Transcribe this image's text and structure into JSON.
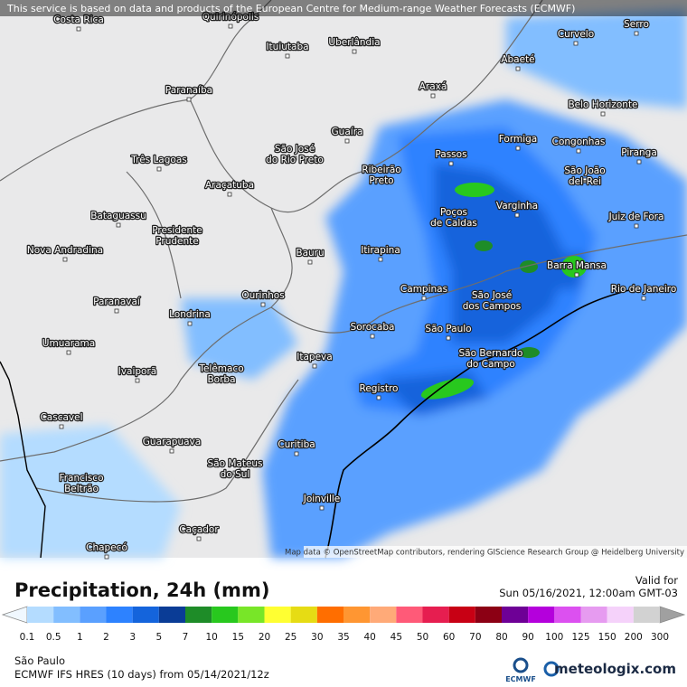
{
  "header": {
    "notice": "This service is based on data and products of the European Centre for Medium-range Weather Forecasts (ECMWF)"
  },
  "map": {
    "attribution": "Map data © OpenStreetMap contributors, rendering GIScience Research Group @ Heidelberg University",
    "cities": [
      {
        "lines": [
          "Costa Rica"
        ]
      },
      {
        "lines": [
          "Quirinópolis"
        ]
      },
      {
        "lines": [
          "Ituiutaba"
        ]
      },
      {
        "lines": [
          "Uberlândia"
        ]
      },
      {
        "lines": [
          "Paranaíba"
        ]
      },
      {
        "lines": [
          "Araxá"
        ]
      },
      {
        "lines": [
          "Abaeté"
        ]
      },
      {
        "lines": [
          "Curvelo"
        ]
      },
      {
        "lines": [
          "Serro"
        ]
      },
      {
        "lines": [
          "Belo Horizonte"
        ]
      },
      {
        "lines": [
          "Guaíra"
        ]
      },
      {
        "lines": [
          "Passos"
        ]
      },
      {
        "lines": [
          "Formiga"
        ]
      },
      {
        "lines": [
          "Congonhas"
        ]
      },
      {
        "lines": [
          "Piranga"
        ]
      },
      {
        "lines": [
          "São José",
          "do Rio Preto"
        ]
      },
      {
        "lines": [
          "Três Lagoas"
        ]
      },
      {
        "lines": [
          "Ribeirão",
          "Preto"
        ]
      },
      {
        "lines": [
          "São João",
          "del-Rei"
        ]
      },
      {
        "lines": [
          "Araçatuba"
        ]
      },
      {
        "lines": [
          "Poços",
          "de Caldas"
        ]
      },
      {
        "lines": [
          "Varginha"
        ]
      },
      {
        "lines": [
          "Juiz de Fora"
        ]
      },
      {
        "lines": [
          "Bataguassu"
        ]
      },
      {
        "lines": [
          "Presidente",
          "Prudente"
        ]
      },
      {
        "lines": [
          "Nova Andradina"
        ]
      },
      {
        "lines": [
          "Bauru"
        ]
      },
      {
        "lines": [
          "Itirapina"
        ]
      },
      {
        "lines": [
          "Barra Mansa"
        ]
      },
      {
        "lines": [
          "Campinas"
        ]
      },
      {
        "lines": [
          "São José",
          "dos Campos"
        ]
      },
      {
        "lines": [
          "Rio de Janeiro"
        ]
      },
      {
        "lines": [
          "Paranavaí"
        ]
      },
      {
        "lines": [
          "Ourinhos"
        ]
      },
      {
        "lines": [
          "Londrina"
        ]
      },
      {
        "lines": [
          "Sorocaba"
        ]
      },
      {
        "lines": [
          "São Paulo"
        ]
      },
      {
        "lines": [
          "São Bernardo",
          "do Campo"
        ]
      },
      {
        "lines": [
          "Umuarama"
        ]
      },
      {
        "lines": [
          "Itapeva"
        ]
      },
      {
        "lines": [
          "Telêmaco",
          "Borba"
        ]
      },
      {
        "lines": [
          "Ivaiporã"
        ]
      },
      {
        "lines": [
          "Registro"
        ]
      },
      {
        "lines": [
          "Cascavel"
        ]
      },
      {
        "lines": [
          "Curitiba"
        ]
      },
      {
        "lines": [
          "Guarapuava"
        ]
      },
      {
        "lines": [
          "São Mateus",
          "do Sul"
        ]
      },
      {
        "lines": [
          "Francisco",
          "Beltrão"
        ]
      },
      {
        "lines": [
          "Joinville"
        ]
      },
      {
        "lines": [
          "Caçador"
        ]
      },
      {
        "lines": [
          "Chapecó"
        ]
      }
    ]
  },
  "legend": {
    "title": "Precipitation, 24h (mm)",
    "valid_label": "Valid for",
    "valid_time": "Sun 05/16/2021, 12:00am GMT-03",
    "scale_values": [
      "0.1",
      "0.5",
      "1",
      "2",
      "3",
      "5",
      "7",
      "10",
      "15",
      "20",
      "25",
      "30",
      "35",
      "40",
      "45",
      "50",
      "60",
      "70",
      "80",
      "90",
      "100",
      "125",
      "150",
      "200",
      "300"
    ],
    "scale_colors": [
      "#b4dcff",
      "#82beff",
      "#5aa0ff",
      "#2d82ff",
      "#1464dc",
      "#0a3c96",
      "#1e8c28",
      "#28c81e",
      "#78e628",
      "#ffff32",
      "#e6dc14",
      "#ff6e00",
      "#ff9632",
      "#ffaa78",
      "#ff5a78",
      "#e61e50",
      "#c80014",
      "#8c0014",
      "#6e0096",
      "#b400dc",
      "#dc50f0",
      "#e69bf0",
      "#f5d2fa",
      "#d2d2d2"
    ]
  },
  "footer": {
    "location": "São Paulo",
    "model": "ECMWF IFS HRES (10 days) from 05/14/2021/12z",
    "ecmwf": "ECMWF",
    "brand": "meteologix.com"
  }
}
